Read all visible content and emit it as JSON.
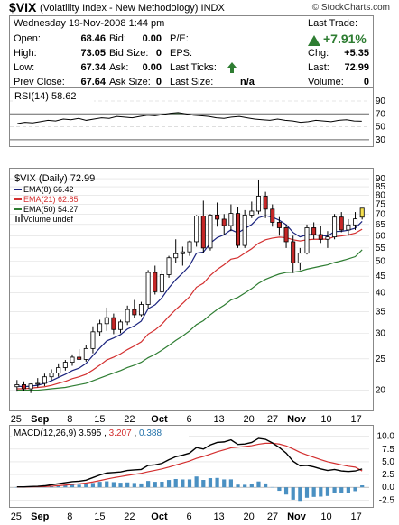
{
  "header": {
    "symbol": "$VIX",
    "name": "(Volatility Index - New Methodology)",
    "exchange": "INDX",
    "logo": "© StockCharts.com"
  },
  "quote": {
    "date": "Wednesday  19-Nov-2008  1:44 pm",
    "open_label": "Open:",
    "open": "68.46",
    "high_label": "High:",
    "high": "73.05",
    "low_label": "Low:",
    "low": "67.34",
    "prev_close_label": "Prev Close:",
    "prev_close": "67.64",
    "bid_label": "Bid:",
    "bid": "0.00",
    "bid_size_label": "Bid Size:",
    "bid_size": "0",
    "ask_label": "Ask:",
    "ask": "0.00",
    "ask_size_label": "Ask Size:",
    "ask_size": "0",
    "pe_label": "P/E:",
    "eps_label": "EPS:",
    "last_ticks_label": "Last Ticks:",
    "last_size_label": "Last Size:",
    "last_size": "n/a",
    "last_trade_label": "Last Trade:",
    "pct_change": "+7.91%",
    "chg_label": "Chg:",
    "chg": "+5.35",
    "last_label": "Last:",
    "last": "72.99",
    "volume_label": "Volume:",
    "volume": "0",
    "up_color": "#2e7d32"
  },
  "chart_data": [
    {
      "type": "line",
      "title": "RSI(14) 58.62",
      "y_ticks": [
        30,
        50,
        70,
        90
      ],
      "levels": [
        30,
        70
      ],
      "values": [
        55,
        57,
        56,
        58,
        60,
        59,
        62,
        61,
        63,
        60,
        62,
        64,
        63,
        66,
        65,
        64,
        66,
        68,
        67,
        69,
        71,
        72,
        70,
        68,
        67,
        66,
        64,
        63,
        65,
        66,
        64,
        62,
        61,
        60,
        62,
        60,
        59,
        57,
        58,
        60,
        59,
        58,
        60,
        61,
        59,
        58.62
      ]
    },
    {
      "type": "candlestick",
      "title": "$VIX (Daily) 72.99",
      "legend": [
        "EMA(8) 66.42",
        "EMA(21) 62.85",
        "EMA(50) 54.27",
        "Volume undef"
      ],
      "series_colors": [
        "#1a237e",
        "#d32f2f",
        "#2e7d32"
      ],
      "y_scale": "log",
      "y_ticks": [
        20,
        25,
        30,
        35,
        40,
        45,
        50,
        55,
        60,
        65,
        70,
        75,
        80,
        85,
        90
      ],
      "x_tick_labels": [
        "25",
        "Sep",
        "8",
        "15",
        "22",
        "Oct",
        "6",
        "13",
        "20",
        "27",
        "Nov",
        "10",
        "17"
      ],
      "ohlc": [
        [
          20.5,
          21.5,
          19.8,
          20.8
        ],
        [
          20.8,
          21.3,
          19.9,
          20.2
        ],
        [
          20.2,
          21.0,
          19.6,
          20.9
        ],
        [
          20.9,
          21.8,
          20.4,
          21.0
        ],
        [
          21.0,
          22.5,
          20.6,
          22.0
        ],
        [
          22.0,
          23.2,
          21.5,
          22.6
        ],
        [
          22.6,
          24.2,
          22.0,
          23.5
        ],
        [
          23.5,
          24.8,
          23.0,
          24.4
        ],
        [
          24.4,
          25.8,
          23.8,
          25.3
        ],
        [
          25.3,
          26.8,
          24.8,
          24.9
        ],
        [
          24.9,
          27.5,
          24.5,
          26.9
        ],
        [
          26.9,
          31.5,
          26.0,
          30.3
        ],
        [
          30.3,
          33.0,
          29.4,
          32.1
        ],
        [
          32.1,
          36.0,
          30.5,
          33.5
        ],
        [
          33.5,
          34.5,
          29.8,
          30.8
        ],
        [
          30.8,
          33.0,
          30.0,
          32.5
        ],
        [
          32.5,
          36.5,
          31.8,
          35.5
        ],
        [
          35.5,
          38.0,
          33.5,
          34.2
        ],
        [
          34.2,
          37.5,
          33.8,
          36.8
        ],
        [
          36.8,
          47.0,
          35.8,
          46.2
        ],
        [
          46.2,
          48.5,
          39.5,
          40.3
        ],
        [
          40.3,
          47.0,
          39.8,
          45.5
        ],
        [
          45.5,
          52.0,
          44.5,
          51.3
        ],
        [
          51.3,
          58.5,
          49.5,
          52.8
        ],
        [
          52.8,
          55.5,
          48.5,
          53.5
        ],
        [
          53.5,
          58.0,
          52.0,
          57.5
        ],
        [
          57.5,
          69.5,
          55.5,
          69.0
        ],
        [
          69.0,
          77.0,
          53.0,
          55.0
        ],
        [
          55.0,
          70.0,
          54.0,
          69.5
        ],
        [
          69.5,
          76.0,
          64.0,
          67.5
        ],
        [
          67.5,
          70.0,
          60.5,
          64.5
        ],
        [
          64.5,
          75.0,
          62.0,
          70.3
        ],
        [
          70.3,
          73.5,
          55.0,
          56.0
        ],
        [
          56.0,
          72.0,
          55.0,
          69.5
        ],
        [
          69.5,
          76.5,
          68.0,
          71.5
        ],
        [
          71.5,
          89.5,
          70.0,
          79.5
        ],
        [
          79.5,
          82.0,
          68.0,
          72.5
        ],
        [
          72.5,
          75.0,
          64.0,
          66.0
        ],
        [
          66.0,
          68.5,
          60.0,
          63.5
        ],
        [
          63.5,
          65.0,
          55.0,
          57.5
        ],
        [
          57.5,
          60.0,
          46.0,
          49.5
        ],
        [
          49.5,
          55.0,
          47.0,
          53.0
        ],
        [
          53.0,
          65.0,
          52.5,
          63.5
        ],
        [
          63.5,
          66.0,
          58.5,
          60.5
        ],
        [
          60.5,
          64.5,
          57.0,
          58.5
        ],
        [
          58.5,
          62.0,
          55.0,
          59.5
        ],
        [
          59.5,
          70.0,
          58.5,
          68.5
        ],
        [
          68.5,
          71.0,
          61.5,
          62.5
        ],
        [
          62.5,
          67.5,
          60.0,
          64.8
        ],
        [
          64.8,
          71.0,
          62.5,
          67.64
        ],
        [
          68.46,
          73.05,
          67.34,
          72.99
        ]
      ],
      "ema8": [
        20.6,
        20.5,
        20.6,
        20.7,
        21.0,
        21.4,
        21.9,
        22.4,
        23.0,
        23.4,
        24.2,
        25.6,
        27.0,
        28.4,
        29.0,
        29.7,
        30.9,
        31.6,
        32.7,
        35.7,
        36.7,
        38.6,
        41.4,
        43.9,
        46.0,
        48.5,
        53.0,
        53.4,
        56.9,
        59.2,
        60.4,
        62.6,
        61.2,
        63.1,
        65.0,
        68.2,
        69.2,
        68.5,
        67.0,
        64.9,
        61.4,
        59.5,
        60.4,
        60.5,
        60.1,
        59.9,
        61.8,
        61.9,
        62.4,
        63.3,
        66.42
      ],
      "ema21": [
        20.2,
        20.2,
        20.3,
        20.4,
        20.5,
        20.7,
        21.0,
        21.3,
        21.7,
        22.0,
        22.4,
        23.1,
        23.9,
        24.8,
        25.3,
        25.9,
        26.7,
        27.4,
        28.2,
        29.8,
        30.7,
        32.0,
        33.8,
        35.5,
        37.1,
        38.9,
        41.6,
        42.8,
        45.2,
        47.2,
        48.8,
        50.8,
        51.3,
        53.0,
        54.7,
        56.9,
        58.3,
        59.0,
        59.4,
        59.2,
        58.3,
        57.8,
        58.3,
        58.5,
        58.5,
        58.6,
        59.6,
        59.9,
        60.4,
        61.1,
        62.85
      ],
      "ema50": [
        20.0,
        20.0,
        20.0,
        20.0,
        20.1,
        20.2,
        20.3,
        20.4,
        20.6,
        20.8,
        21.0,
        21.4,
        21.8,
        22.2,
        22.6,
        23.0,
        23.5,
        23.9,
        24.4,
        25.2,
        25.8,
        26.6,
        27.5,
        28.5,
        29.4,
        30.5,
        31.9,
        32.8,
        34.2,
        35.5,
        36.6,
        38.0,
        38.7,
        39.9,
        41.2,
        42.8,
        44.0,
        44.9,
        45.7,
        46.2,
        46.3,
        46.6,
        47.3,
        47.8,
        48.3,
        48.8,
        49.6,
        50.2,
        50.9,
        51.7,
        54.27
      ]
    },
    {
      "type": "line",
      "title": "MACD(12,26,9)",
      "legend": [
        "3.595",
        "3.207",
        "0.388"
      ],
      "series_colors": [
        "#000000",
        "#d32f2f",
        "#1f6fa8"
      ],
      "y_ticks": [
        -2.5,
        0.0,
        2.5,
        5.0,
        7.5,
        10.0
      ],
      "x_tick_labels": [
        "25",
        "Sep",
        "8",
        "15",
        "22",
        "Oct",
        "6",
        "13",
        "20",
        "27",
        "Nov",
        "10",
        "17"
      ],
      "macd": [
        0.1,
        0.1,
        0.15,
        0.2,
        0.3,
        0.5,
        0.7,
        0.9,
        1.1,
        1.2,
        1.4,
        1.9,
        2.4,
        2.8,
        2.9,
        3.0,
        3.3,
        3.4,
        3.5,
        4.3,
        4.4,
        4.7,
        5.4,
        6.0,
        6.3,
        6.7,
        7.8,
        7.5,
        8.3,
        8.8,
        8.9,
        9.3,
        8.4,
        8.5,
        8.8,
        9.6,
        9.4,
        8.7,
        7.8,
        6.7,
        5.1,
        4.2,
        4.3,
        4.0,
        3.6,
        3.3,
        3.5,
        3.2,
        3.1,
        3.2,
        3.595
      ],
      "signal": [
        0.05,
        0.07,
        0.09,
        0.11,
        0.15,
        0.22,
        0.32,
        0.43,
        0.57,
        0.69,
        0.83,
        1.05,
        1.32,
        1.62,
        1.88,
        2.1,
        2.34,
        2.55,
        2.74,
        3.05,
        3.32,
        3.6,
        3.96,
        4.37,
        4.76,
        5.15,
        5.68,
        6.05,
        6.5,
        6.96,
        7.35,
        7.74,
        7.87,
        8.0,
        8.16,
        8.45,
        8.64,
        8.65,
        8.48,
        8.12,
        7.52,
        6.86,
        6.35,
        5.88,
        5.42,
        5.0,
        4.7,
        4.4,
        4.14,
        3.95,
        3.207
      ],
      "histogram": [
        0.05,
        0.03,
        0.06,
        0.09,
        0.15,
        0.28,
        0.38,
        0.47,
        0.53,
        0.51,
        0.57,
        0.85,
        1.08,
        1.18,
        1.02,
        0.9,
        0.96,
        0.85,
        0.76,
        1.25,
        1.08,
        1.1,
        1.44,
        1.63,
        1.54,
        1.55,
        2.12,
        1.45,
        1.8,
        1.84,
        1.55,
        1.56,
        0.53,
        0.5,
        0.64,
        1.15,
        0.76,
        0.05,
        -0.68,
        -1.42,
        -2.42,
        -2.66,
        -2.05,
        -1.88,
        -1.82,
        -1.7,
        -1.2,
        -1.2,
        -1.04,
        -0.75,
        0.388
      ]
    }
  ]
}
